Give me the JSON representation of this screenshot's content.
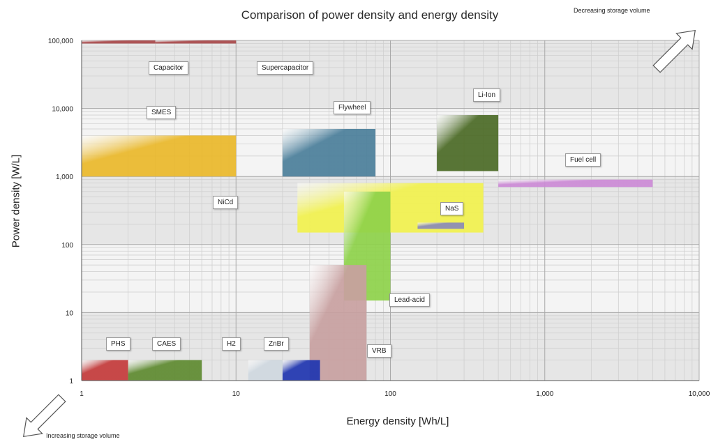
{
  "chart_data": {
    "type": "area",
    "title": "Comparison of power density and energy density",
    "xlabel": "Energy density [Wh/L]",
    "ylabel": "Power density [W/L]",
    "x_scale": "log",
    "y_scale": "log",
    "x_ticks": [
      "1",
      "10",
      "100",
      "1,000",
      "10,000"
    ],
    "y_ticks": [
      "1",
      "10",
      "100",
      "1,000",
      "10,000",
      "100,000"
    ],
    "xlim": [
      1,
      10000
    ],
    "ylim": [
      1,
      100000
    ],
    "grid": true,
    "corner_labels": {
      "top_right": "Decreasing storage volume",
      "bottom_left": "Increasing storage volume"
    },
    "regions": [
      {
        "name": "Capacitor",
        "x": [
          1,
          3
        ],
        "y": [
          90000,
          100000
        ],
        "color": "#a8484a"
      },
      {
        "name": "Supercapacitor",
        "x": [
          3,
          10
        ],
        "y": [
          90000,
          100000
        ],
        "color": "#a8484a"
      },
      {
        "name": "SMES",
        "x": [
          1,
          10
        ],
        "y": [
          1000,
          4000
        ],
        "color": "#eab82a"
      },
      {
        "name": "Flywheel",
        "x": [
          20,
          80
        ],
        "y": [
          1000,
          5000
        ],
        "color": "#4a7e9a"
      },
      {
        "name": "Li-Ion",
        "x": [
          200,
          500
        ],
        "y": [
          1200,
          8000
        ],
        "color": "#4b6a25"
      },
      {
        "name": "Fuel cell",
        "x": [
          500,
          5000
        ],
        "y": [
          700,
          900
        ],
        "color": "#cc8ad6"
      },
      {
        "name": "NiCd",
        "x": [
          25,
          400
        ],
        "y": [
          150,
          800
        ],
        "color": "#f2f24e"
      },
      {
        "name": "NaS",
        "x": [
          150,
          300
        ],
        "y": [
          170,
          210
        ],
        "color": "#8a8ab8"
      },
      {
        "name": "Lead-acid",
        "x": [
          50,
          100
        ],
        "y": [
          15,
          600
        ],
        "color": "#8ed24a"
      },
      {
        "name": "VRB",
        "x": [
          30,
          70
        ],
        "y": [
          1,
          50
        ],
        "color": "#c8a0a0"
      },
      {
        "name": "PHS",
        "x": [
          1,
          2
        ],
        "y": [
          1,
          2
        ],
        "color": "#c43a3a"
      },
      {
        "name": "CAES",
        "x": [
          2,
          6
        ],
        "y": [
          1,
          2
        ],
        "color": "#5e8a30"
      },
      {
        "name": "ZnBr",
        "x": [
          20,
          35
        ],
        "y": [
          1,
          2
        ],
        "color": "#1f35b0"
      },
      {
        "name": "H2",
        "x": [
          12,
          20
        ],
        "y": [
          1,
          2
        ],
        "color": "#cfd8e0"
      }
    ],
    "callout_labels": [
      "Capacitor",
      "Supercapacitor",
      "SMES",
      "Flywheel",
      "Li-Ion",
      "Fuel cell",
      "NiCd",
      "NaS",
      "Lead-acid",
      "VRB",
      "PHS",
      "CAES",
      "H2",
      "ZnBr"
    ]
  }
}
